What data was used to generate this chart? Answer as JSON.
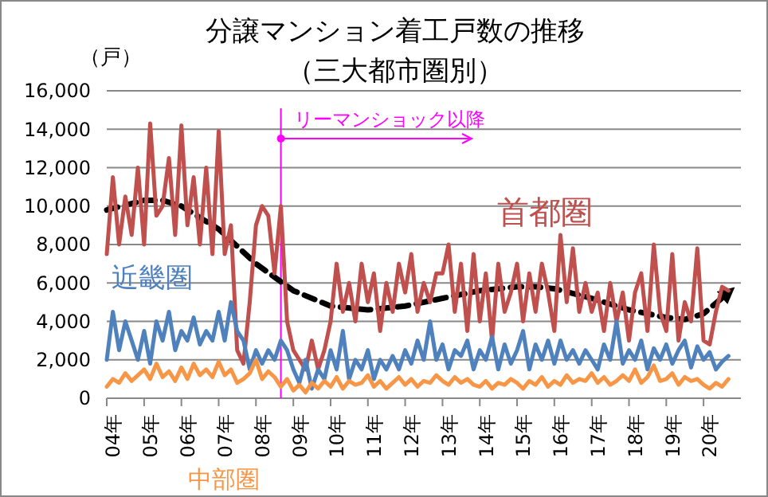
{
  "chart_data": {
    "type": "line",
    "title": "分譲マンション着工戸数の推移",
    "subtitle": "（三大都市圏別）",
    "ylabel": "（戸）",
    "xlim": [
      "2004-01",
      "2021-01"
    ],
    "xticks": [
      {
        "value": "2004-01",
        "label": "04年"
      },
      {
        "value": "2005-01",
        "label": "05年"
      },
      {
        "value": "2006-01",
        "label": "06年"
      },
      {
        "value": "2007-01",
        "label": "07年"
      },
      {
        "value": "2008-01",
        "label": "08年"
      },
      {
        "value": "2009-01",
        "label": "09年"
      },
      {
        "value": "2010-01",
        "label": "10年"
      },
      {
        "value": "2011-01",
        "label": "11年"
      },
      {
        "value": "2012-01",
        "label": "12年"
      },
      {
        "value": "2013-01",
        "label": "13年"
      },
      {
        "value": "2014-01",
        "label": "14年"
      },
      {
        "value": "2015-01",
        "label": "15年"
      },
      {
        "value": "2016-01",
        "label": "16年"
      },
      {
        "value": "2017-01",
        "label": "17年"
      },
      {
        "value": "2018-01",
        "label": "18年"
      },
      {
        "value": "2019-01",
        "label": "19年"
      },
      {
        "value": "2020-01",
        "label": "20年"
      }
    ],
    "ylim": [
      0,
      16000
    ],
    "yticks": [
      {
        "value": 0,
        "label": "0"
      },
      {
        "value": 2000,
        "label": "2,000"
      },
      {
        "value": 4000,
        "label": "4,000"
      },
      {
        "value": 6000,
        "label": "6,000"
      },
      {
        "value": 8000,
        "label": "8,000"
      },
      {
        "value": 10000,
        "label": "10,000"
      },
      {
        "value": 12000,
        "label": "12,000"
      },
      {
        "value": 14000,
        "label": "14,000"
      },
      {
        "value": 16000,
        "label": "16,000"
      }
    ],
    "grid": "y",
    "legend": false,
    "marker": "none",
    "ref_lines": [
      {
        "axis": "x",
        "value": "2008-09",
        "label": "リーマンショック以降",
        "color": "#ff00ff"
      }
    ],
    "series": [
      {
        "name": "首都圏",
        "color": "#c0504d",
        "values": [
          7500,
          11500,
          8000,
          10500,
          8500,
          12000,
          8000,
          14300,
          9500,
          10000,
          12500,
          8500,
          14200,
          9000,
          11500,
          8000,
          12000,
          7500,
          13900,
          7500,
          9000,
          2500,
          1800,
          5000,
          9000,
          10000,
          9500,
          6500,
          10000,
          4000,
          2500,
          2000,
          1500,
          3000,
          1500,
          2500,
          4000,
          7000,
          4500,
          6000,
          4000,
          7000,
          5000,
          6500,
          3500,
          6000,
          4500,
          7000,
          5500,
          7500,
          4500,
          6000,
          5000,
          6500,
          6500,
          8000,
          4500,
          7000,
          3500,
          7500,
          4000,
          6500,
          3000,
          7000,
          4500,
          5500,
          7000,
          4000,
          6500,
          4500,
          7000,
          5500,
          3500,
          8500,
          5000,
          7800,
          4500,
          6000,
          4500,
          5500,
          3500,
          6000,
          4000,
          5500,
          3000,
          5500,
          6500,
          3500,
          8000,
          4500,
          3500,
          7500,
          3000,
          5000,
          4000,
          7800,
          3000,
          2800,
          4500,
          5800,
          5600
        ]
      },
      {
        "name": "近畿圏",
        "color": "#4f81bd",
        "values": [
          2000,
          4500,
          2500,
          4000,
          3000,
          2000,
          3500,
          1800,
          4000,
          3000,
          4500,
          2500,
          3500,
          3000,
          4200,
          2800,
          3500,
          3000,
          4500,
          3000,
          5000,
          3500,
          3000,
          1500,
          2500,
          1800,
          2500,
          2000,
          3000,
          2500,
          1500,
          800,
          2000,
          500,
          1500,
          1000,
          2500,
          1500,
          3500,
          1000,
          2000,
          1500,
          2500,
          1000,
          2000,
          1500,
          2200,
          1500,
          2500,
          1800,
          3000,
          2000,
          4000,
          2000,
          2800,
          1500,
          2500,
          2200,
          3000,
          1500,
          2500,
          2000,
          3200,
          1500,
          2800,
          1800,
          2500,
          3500,
          1500,
          2800,
          2000,
          3000,
          1800,
          3000,
          2000,
          2500,
          1800,
          2500,
          2000,
          1500,
          2800,
          2000,
          4000,
          1800,
          2500,
          2000,
          3000,
          1500,
          2600,
          2000,
          2800,
          1800,
          2500,
          3000,
          1600,
          2700,
          2000,
          2400,
          1500,
          1900,
          2200
        ]
      },
      {
        "name": "中部圏",
        "color": "#f79646",
        "values": [
          600,
          1000,
          800,
          1300,
          900,
          1200,
          1500,
          1000,
          1800,
          1100,
          1400,
          900,
          1600,
          1000,
          1800,
          1200,
          1500,
          1100,
          1900,
          1200,
          1500,
          800,
          1000,
          1300,
          2000,
          1000,
          1400,
          1100,
          600,
          1000,
          400,
          700,
          300,
          800,
          500,
          900,
          600,
          1100,
          500,
          900,
          700,
          800,
          1200,
          600,
          900,
          500,
          800,
          1100,
          700,
          1000,
          600,
          900,
          800,
          1200,
          900,
          700,
          1100,
          800,
          1000,
          700,
          600,
          900,
          500,
          800,
          700,
          1000,
          800,
          500,
          900,
          700,
          1100,
          600,
          900,
          700,
          1200,
          800,
          1000,
          900,
          1300,
          800,
          1100,
          700,
          900,
          1200,
          900,
          1500,
          800,
          1100,
          1700,
          900,
          1000,
          1300,
          700,
          1100,
          900,
          1000,
          700,
          500,
          800,
          600,
          1000
        ]
      },
      {
        "color": "#000000",
        "line_style": "dashed",
        "x": [
          "2004-01",
          "2005-01",
          "2005-07",
          "2006-01",
          "2007-01",
          "2008-01",
          "2009-01",
          "2010-01",
          "2011-01",
          "2012-01",
          "2013-01",
          "2014-01",
          "2015-01",
          "2015-07",
          "2016-01",
          "2017-01",
          "2018-01",
          "2019-01",
          "2019-07",
          "2020-01",
          "2020-09"
        ],
        "values": [
          9800,
          10300,
          10300,
          10000,
          8800,
          7000,
          5600,
          4800,
          4600,
          4800,
          5200,
          5600,
          5800,
          5800,
          5700,
          5200,
          4600,
          4200,
          4100,
          4400,
          5500
        ]
      }
    ],
    "x": [
      "2004-01",
      "2004-03",
      "2004-05",
      "2004-07",
      "2004-09",
      "2004-11",
      "2005-01",
      "2005-03",
      "2005-05",
      "2005-07",
      "2005-09",
      "2005-11",
      "2006-01",
      "2006-03",
      "2006-05",
      "2006-07",
      "2006-09",
      "2006-11",
      "2007-01",
      "2007-03",
      "2007-05",
      "2007-07",
      "2007-09",
      "2007-11",
      "2008-01",
      "2008-03",
      "2008-05",
      "2008-07",
      "2008-09",
      "2008-11",
      "2009-01",
      "2009-03",
      "2009-05",
      "2009-07",
      "2009-09",
      "2009-11",
      "2010-01",
      "2010-03",
      "2010-05",
      "2010-07",
      "2010-09",
      "2010-11",
      "2011-01",
      "2011-03",
      "2011-05",
      "2011-07",
      "2011-09",
      "2011-11",
      "2012-01",
      "2012-03",
      "2012-05",
      "2012-07",
      "2012-09",
      "2012-11",
      "2013-01",
      "2013-03",
      "2013-05",
      "2013-07",
      "2013-09",
      "2013-11",
      "2014-01",
      "2014-03",
      "2014-05",
      "2014-07",
      "2014-09",
      "2014-11",
      "2015-01",
      "2015-03",
      "2015-05",
      "2015-07",
      "2015-09",
      "2015-11",
      "2016-01",
      "2016-03",
      "2016-05",
      "2016-07",
      "2016-09",
      "2016-11",
      "2017-01",
      "2017-03",
      "2017-05",
      "2017-07",
      "2017-09",
      "2017-11",
      "2018-01",
      "2018-03",
      "2018-05",
      "2018-07",
      "2018-09",
      "2018-11",
      "2019-01",
      "2019-03",
      "2019-05",
      "2019-07",
      "2019-09",
      "2019-11",
      "2020-01",
      "2020-03",
      "2020-05",
      "2020-07",
      "2020-09"
    ]
  }
}
